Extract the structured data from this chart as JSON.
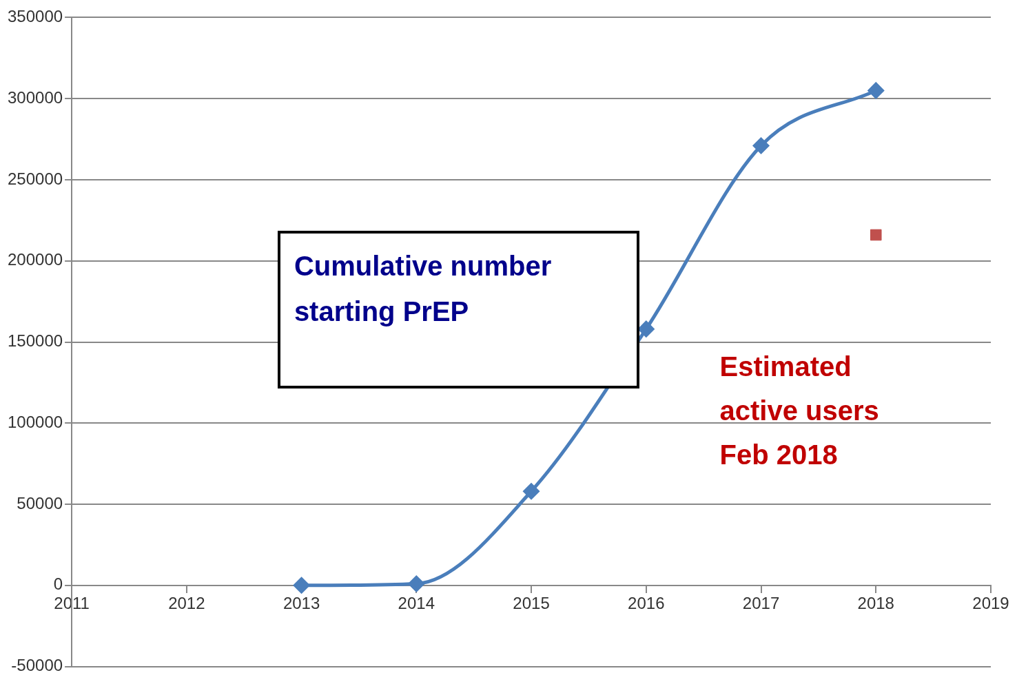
{
  "chart_data": {
    "type": "line",
    "xlim": [
      2011,
      2019
    ],
    "xticks": [
      2011,
      2012,
      2013,
      2014,
      2015,
      2016,
      2017,
      2018,
      2019
    ],
    "ylim": [
      -50000,
      350000
    ],
    "yticks": [
      -50000,
      0,
      50000,
      100000,
      150000,
      200000,
      250000,
      300000,
      350000
    ],
    "grid": "y",
    "series": [
      {
        "color": "#4a7ebb",
        "marker": "diamond",
        "x": [
          2013,
          2014,
          2015,
          2016,
          2017,
          2018
        ],
        "values": [
          0,
          1000,
          58000,
          158000,
          271000,
          305000
        ]
      },
      {
        "type": "scatter",
        "color": "#c0504d",
        "marker": "square",
        "x": [
          2018
        ],
        "values": [
          216000
        ]
      }
    ],
    "annotations": [
      "Cumulative number starting PrEP",
      "Estimated active users Feb 2018"
    ]
  }
}
